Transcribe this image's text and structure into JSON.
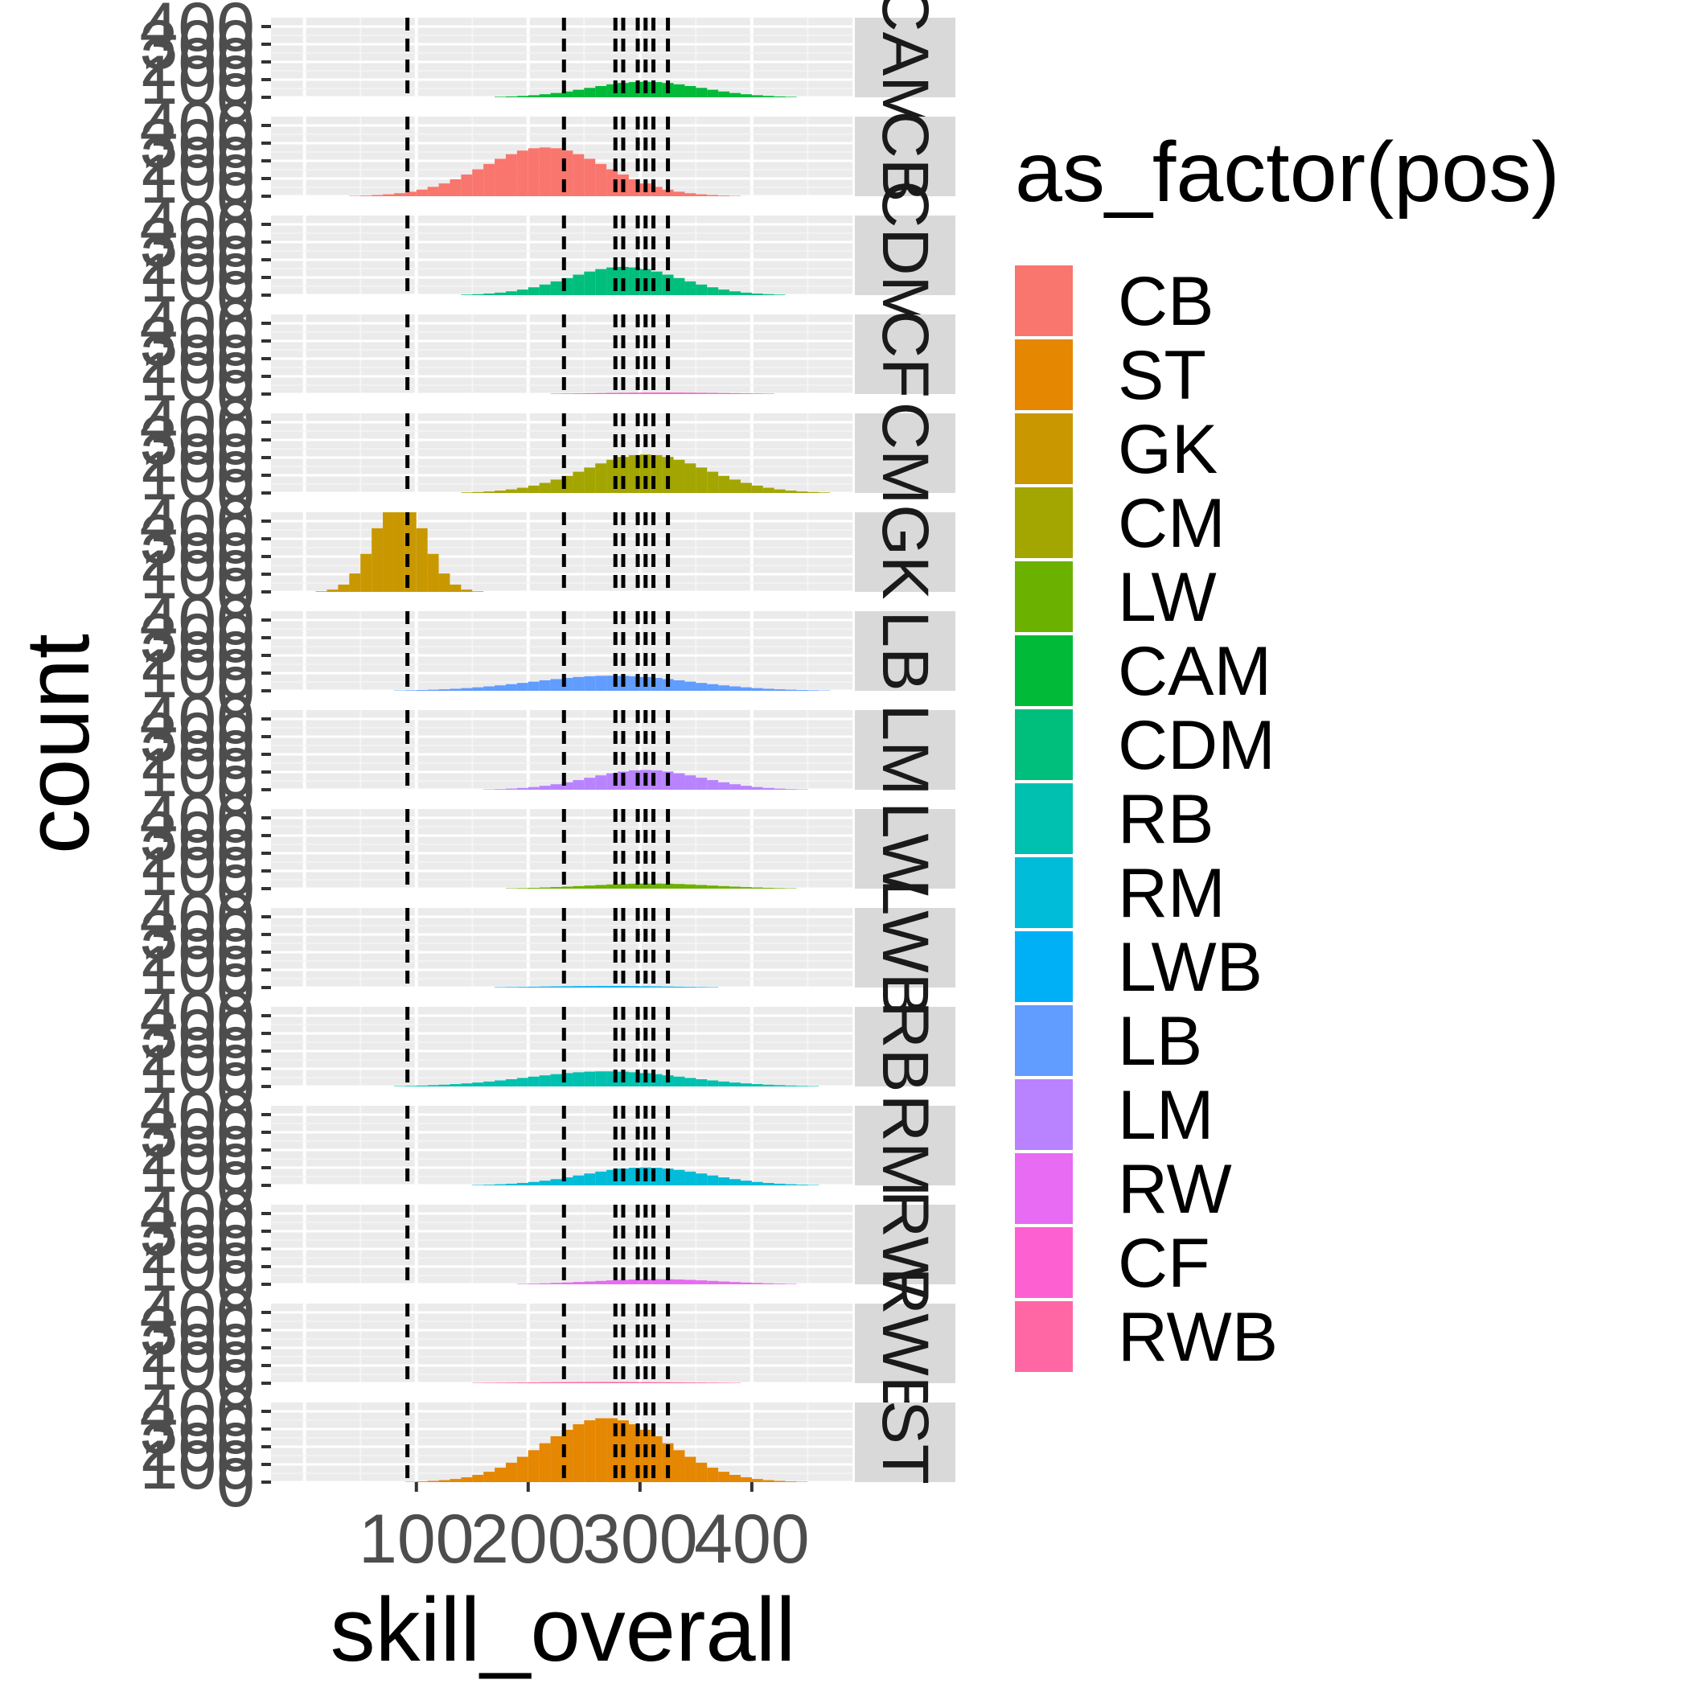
{
  "chart_data": {
    "type": "bar",
    "subtype": "faceted-histogram",
    "xlabel": "skill_overall",
    "ylabel": "count",
    "x_ticks": [
      100,
      200,
      300,
      400
    ],
    "xlim": [
      -30,
      490
    ],
    "ylim": [
      0,
      450
    ],
    "y_tick_labels": [
      "0",
      "100",
      "200",
      "300",
      "400"
    ],
    "legend": {
      "title": "as_factor(pos)",
      "position": "right",
      "entries": [
        {
          "label": "CB",
          "color": "#F8766D"
        },
        {
          "label": "ST",
          "color": "#E58700"
        },
        {
          "label": "GK",
          "color": "#C99800"
        },
        {
          "label": "CM",
          "color": "#A3A500"
        },
        {
          "label": "LW",
          "color": "#6BB100"
        },
        {
          "label": "CAM",
          "color": "#00BA38"
        },
        {
          "label": "CDM",
          "color": "#00BF7D"
        },
        {
          "label": "RB",
          "color": "#00C0AF"
        },
        {
          "label": "RM",
          "color": "#00BCD8"
        },
        {
          "label": "LWB",
          "color": "#00B0F6"
        },
        {
          "label": "LB",
          "color": "#619CFF"
        },
        {
          "label": "LM",
          "color": "#B983FF"
        },
        {
          "label": "RW",
          "color": "#E76BF3"
        },
        {
          "label": "CF",
          "color": "#FD61D1"
        },
        {
          "label": "RWB",
          "color": "#FF67A4"
        }
      ]
    },
    "vlines": [
      92,
      232,
      278,
      285,
      298,
      305,
      312,
      325
    ],
    "panels": [
      {
        "strip": "CAM",
        "color": "#00BA38",
        "mean": 305,
        "sd": 50,
        "total": 1100
      },
      {
        "strip": "CB",
        "color": "#F8766D",
        "mean": 215,
        "sd": 55,
        "total": 3800
      },
      {
        "strip": "CDM",
        "color": "#00BF7D",
        "mean": 285,
        "sd": 50,
        "total": 2000
      },
      {
        "strip": "CF",
        "color": "#FD61D1",
        "mean": 320,
        "sd": 60,
        "total": 130
      },
      {
        "strip": "CM",
        "color": "#A3A500",
        "mean": 305,
        "sd": 55,
        "total": 3000
      },
      {
        "strip": "GK",
        "color": "#C99800",
        "mean": 85,
        "sd": 22,
        "total": 3000
      },
      {
        "strip": "LB",
        "color": "#619CFF",
        "mean": 275,
        "sd": 70,
        "total": 1500
      },
      {
        "strip": "LM",
        "color": "#B983FF",
        "mean": 305,
        "sd": 50,
        "total": 1400
      },
      {
        "strip": "LW",
        "color": "#6BB100",
        "mean": 310,
        "sd": 55,
        "total": 400
      },
      {
        "strip": "LWB",
        "color": "#00B0F6",
        "mean": 270,
        "sd": 60,
        "total": 130
      },
      {
        "strip": "RB",
        "color": "#00C0AF",
        "mean": 270,
        "sd": 70,
        "total": 1500
      },
      {
        "strip": "RM",
        "color": "#00BCD8",
        "mean": 305,
        "sd": 55,
        "total": 1400
      },
      {
        "strip": "RW",
        "color": "#E76BF3",
        "mean": 315,
        "sd": 55,
        "total": 400
      },
      {
        "strip": "RWB",
        "color": "#FF67A4",
        "mean": 270,
        "sd": 75,
        "total": 130
      },
      {
        "strip": "ST",
        "color": "#E58700",
        "mean": 270,
        "sd": 55,
        "total": 5000
      }
    ]
  }
}
